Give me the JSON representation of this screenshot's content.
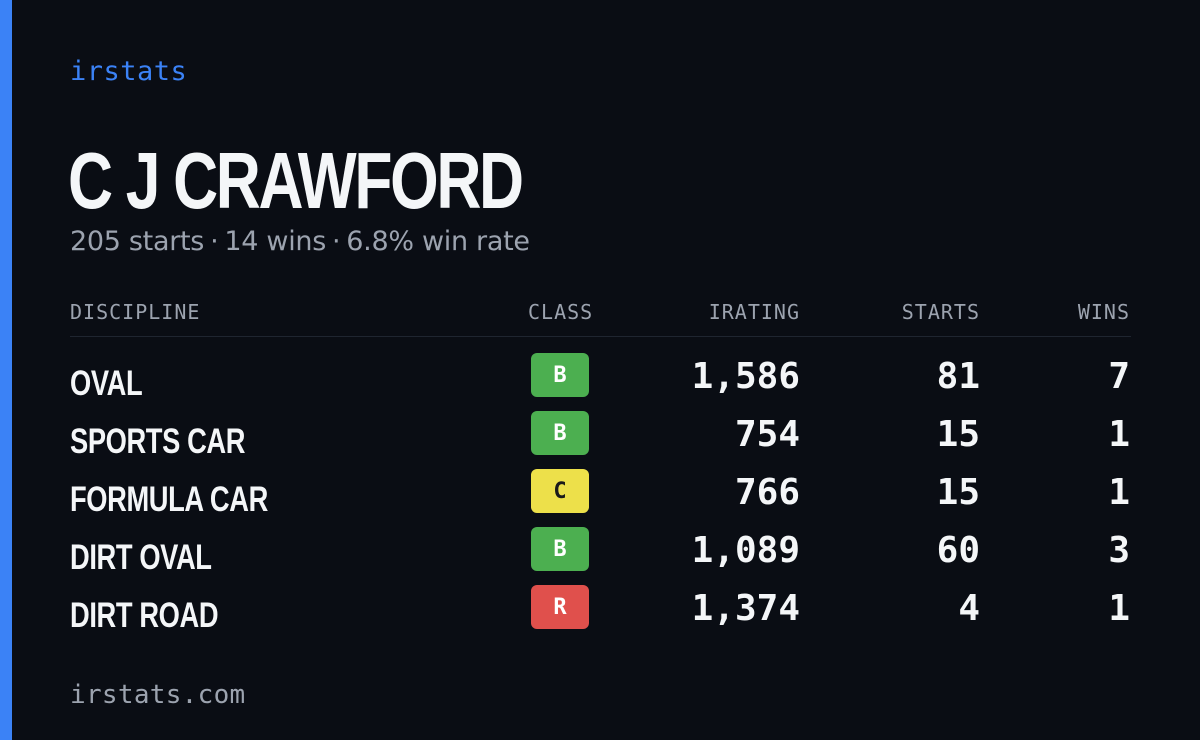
{
  "brand": "irstats",
  "driver": {
    "name": "C J CRAWFORD",
    "starts_text": "205 starts",
    "wins_text": "14 wins",
    "win_rate_text": "6.8% win rate",
    "separator": "·"
  },
  "table": {
    "headers": {
      "discipline": "DISCIPLINE",
      "class": "CLASS",
      "irating": "IRATING",
      "starts": "STARTS",
      "wins": "WINS"
    },
    "rows": [
      {
        "discipline": "OVAL",
        "class": "B",
        "irating": "1,586",
        "starts": "81",
        "wins": "7"
      },
      {
        "discipline": "SPORTS CAR",
        "class": "B",
        "irating": "754",
        "starts": "15",
        "wins": "1"
      },
      {
        "discipline": "FORMULA CAR",
        "class": "C",
        "irating": "766",
        "starts": "15",
        "wins": "1"
      },
      {
        "discipline": "DIRT OVAL",
        "class": "B",
        "irating": "1,089",
        "starts": "60",
        "wins": "3"
      },
      {
        "discipline": "DIRT ROAD",
        "class": "R",
        "irating": "1,374",
        "starts": "4",
        "wins": "1"
      }
    ]
  },
  "class_colors": {
    "B": {
      "bg": "#4caf50",
      "fg": "#ffffff"
    },
    "C": {
      "bg": "#ede04a",
      "fg": "#1a1a1a"
    },
    "R": {
      "bg": "#e0504c",
      "fg": "#ffffff"
    }
  },
  "colors": {
    "background": "#0a0d14",
    "accent": "#3b82f6",
    "text": "#f4f6f8",
    "muted": "#9ca3af"
  },
  "footer": "irstats.com"
}
